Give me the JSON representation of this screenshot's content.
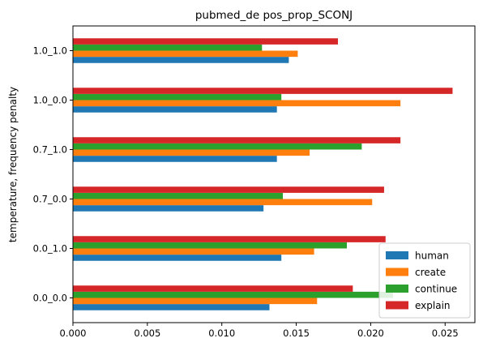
{
  "chart_data": {
    "type": "bar",
    "orientation": "horizontal",
    "title": "pubmed_de pos_prop_SCONJ",
    "xlabel": "",
    "ylabel": "temperature, frequency penalty",
    "categories": [
      "0.0_0.0",
      "0.0_1.0",
      "0.7_0.0",
      "0.7_1.0",
      "1.0_0.0",
      "1.0_1.0"
    ],
    "xlim": [
      0,
      0.027
    ],
    "xticks": [
      "0.000",
      "0.005",
      "0.010",
      "0.015",
      "0.020",
      "0.025"
    ],
    "grid": false,
    "legend_position": "bottom-right",
    "series": [
      {
        "name": "human",
        "color": "#1f77b4",
        "values": [
          0.0132,
          0.014,
          0.0128,
          0.0137,
          0.0137,
          0.0145
        ]
      },
      {
        "name": "create",
        "color": "#ff7f0e",
        "values": [
          0.0164,
          0.0162,
          0.0201,
          0.0159,
          0.022,
          0.0151
        ]
      },
      {
        "name": "continue",
        "color": "#2ca02c",
        "values": [
          0.0215,
          0.0184,
          0.0141,
          0.0194,
          0.014,
          0.0127
        ]
      },
      {
        "name": "explain",
        "color": "#d62728",
        "values": [
          0.0188,
          0.021,
          0.0209,
          0.022,
          0.0255,
          0.0178
        ]
      }
    ]
  }
}
